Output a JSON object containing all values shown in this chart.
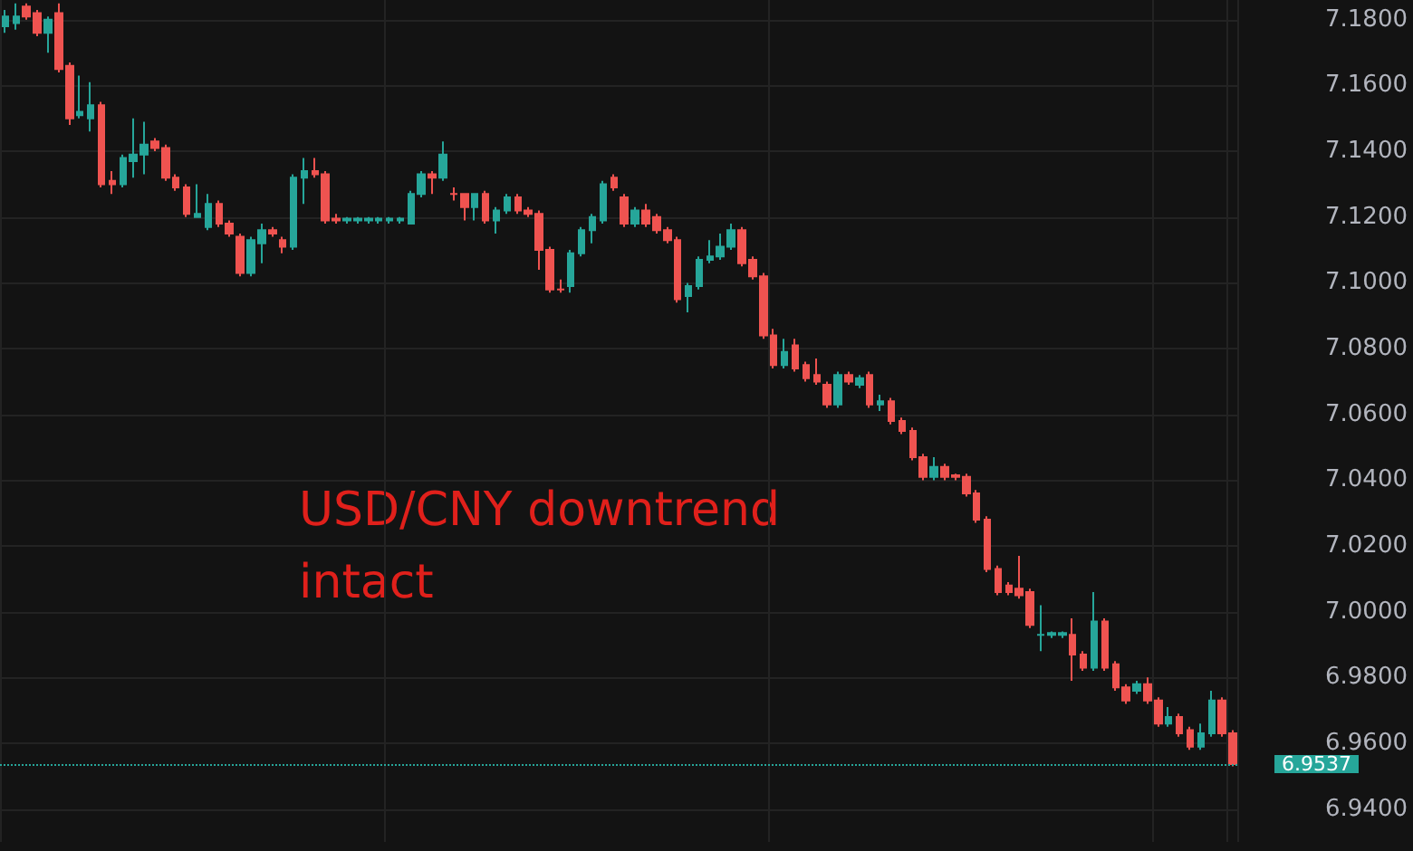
{
  "chart_data": {
    "type": "candlestick",
    "categories": [
      null,
      null,
      null,
      null,
      null,
      null,
      null,
      null,
      null,
      null,
      null,
      null,
      null,
      null,
      null,
      null,
      null,
      null,
      null,
      null,
      null,
      null,
      null,
      null,
      null,
      null,
      null,
      null,
      null,
      null,
      null,
      null,
      null,
      null,
      null,
      null,
      null,
      null,
      null,
      null,
      null,
      null,
      null,
      null,
      null,
      null,
      null,
      null,
      null,
      null,
      null,
      null,
      null,
      null,
      null,
      null,
      null,
      null,
      null,
      null,
      null,
      null,
      null,
      null,
      null,
      null,
      null,
      null,
      null,
      null,
      null,
      null,
      null,
      null,
      null,
      null,
      null,
      null,
      null,
      null,
      null,
      null,
      null,
      null,
      null,
      null,
      null,
      null,
      null,
      null,
      null,
      null,
      null,
      null,
      null,
      null,
      null,
      null,
      null,
      null,
      null,
      null,
      null,
      null,
      null,
      null,
      null,
      null,
      null,
      null,
      null,
      null,
      null,
      null,
      null,
      null
    ],
    "ohlc": [
      [
        7.178,
        7.183,
        7.176,
        7.181
      ],
      [
        7.179,
        7.185,
        7.177,
        7.181
      ],
      [
        7.184,
        7.185,
        7.18,
        7.181
      ],
      [
        7.182,
        7.183,
        7.175,
        7.176
      ],
      [
        7.176,
        7.181,
        7.17,
        7.18
      ],
      [
        7.182,
        7.185,
        7.164,
        7.165
      ],
      [
        7.166,
        7.167,
        7.148,
        7.15
      ],
      [
        7.151,
        7.163,
        7.15,
        7.152
      ],
      [
        7.15,
        7.161,
        7.146,
        7.154
      ],
      [
        7.154,
        7.155,
        7.129,
        7.13
      ],
      [
        7.131,
        7.134,
        7.127,
        7.13
      ],
      [
        7.13,
        7.139,
        7.129,
        7.138
      ],
      [
        7.137,
        7.15,
        7.132,
        7.139
      ],
      [
        7.139,
        7.149,
        7.133,
        7.142
      ],
      [
        7.143,
        7.144,
        7.14,
        7.141
      ],
      [
        7.141,
        7.142,
        7.131,
        7.132
      ],
      [
        7.132,
        7.133,
        7.128,
        7.129
      ],
      [
        7.129,
        7.13,
        7.12,
        7.121
      ],
      [
        7.12,
        7.13,
        7.12,
        7.121
      ],
      [
        7.117,
        7.127,
        7.116,
        7.124
      ],
      [
        7.124,
        7.125,
        7.117,
        7.118
      ],
      [
        7.118,
        7.119,
        7.114,
        7.115
      ],
      [
        7.114,
        7.115,
        7.102,
        7.103
      ],
      [
        7.103,
        7.114,
        7.102,
        7.113
      ],
      [
        7.112,
        7.118,
        7.106,
        7.116
      ],
      [
        7.116,
        7.117,
        7.114,
        7.115
      ],
      [
        7.113,
        7.114,
        7.109,
        7.111
      ],
      [
        7.111,
        7.133,
        7.11,
        7.132
      ],
      [
        7.132,
        7.138,
        7.124,
        7.134
      ],
      [
        7.134,
        7.138,
        7.132,
        7.133
      ],
      [
        7.133,
        7.134,
        7.118,
        7.119
      ],
      [
        7.1195,
        7.121,
        7.118,
        7.119
      ],
      [
        7.119,
        7.12,
        7.118,
        7.1195
      ],
      [
        7.119,
        7.12,
        7.118,
        7.1195
      ],
      [
        7.119,
        7.12,
        7.118,
        7.1195
      ],
      [
        7.119,
        7.12,
        7.118,
        7.1195
      ],
      [
        7.119,
        7.12,
        7.118,
        7.1195
      ],
      [
        7.119,
        7.12,
        7.118,
        7.1195
      ],
      [
        7.118,
        7.128,
        7.118,
        7.127
      ],
      [
        7.127,
        7.134,
        7.126,
        7.133
      ],
      [
        7.133,
        7.134,
        7.127,
        7.132
      ],
      [
        7.132,
        7.143,
        7.131,
        7.139
      ],
      [
        7.127,
        7.129,
        7.125,
        7.127
      ],
      [
        7.127,
        7.127,
        7.119,
        7.123
      ],
      [
        7.123,
        7.127,
        7.119,
        7.127
      ],
      [
        7.127,
        7.128,
        7.118,
        7.119
      ],
      [
        7.119,
        7.123,
        7.115,
        7.122
      ],
      [
        7.122,
        7.127,
        7.121,
        7.126
      ],
      [
        7.126,
        7.127,
        7.121,
        7.122
      ],
      [
        7.122,
        7.123,
        7.12,
        7.121
      ],
      [
        7.121,
        7.122,
        7.104,
        7.11
      ],
      [
        7.11,
        7.111,
        7.097,
        7.098
      ],
      [
        7.098,
        7.101,
        7.097,
        7.098
      ],
      [
        7.099,
        7.11,
        7.097,
        7.109
      ],
      [
        7.109,
        7.117,
        7.108,
        7.116
      ],
      [
        7.116,
        7.121,
        7.112,
        7.12
      ],
      [
        7.119,
        7.131,
        7.118,
        7.13
      ],
      [
        7.132,
        7.133,
        7.128,
        7.129
      ],
      [
        7.126,
        7.127,
        7.117,
        7.118
      ],
      [
        7.118,
        7.123,
        7.117,
        7.122
      ],
      [
        7.122,
        7.124,
        7.117,
        7.118
      ],
      [
        7.12,
        7.121,
        7.115,
        7.116
      ],
      [
        7.116,
        7.117,
        7.112,
        7.113
      ],
      [
        7.113,
        7.114,
        7.094,
        7.095
      ],
      [
        7.096,
        7.1,
        7.091,
        7.099
      ],
      [
        7.099,
        7.108,
        7.098,
        7.107
      ],
      [
        7.107,
        7.113,
        7.106,
        7.108
      ],
      [
        7.108,
        7.115,
        7.107,
        7.111
      ],
      [
        7.111,
        7.118,
        7.11,
        7.116
      ],
      [
        7.116,
        7.117,
        7.105,
        7.106
      ],
      [
        7.107,
        7.108,
        7.101,
        7.102
      ],
      [
        7.102,
        7.103,
        7.083,
        7.084
      ],
      [
        7.084,
        7.086,
        7.074,
        7.075
      ],
      [
        7.075,
        7.083,
        7.074,
        7.079
      ],
      [
        7.081,
        7.083,
        7.073,
        7.074
      ],
      [
        7.075,
        7.076,
        7.07,
        7.071
      ],
      [
        7.072,
        7.077,
        7.069,
        7.07
      ],
      [
        7.069,
        7.07,
        7.062,
        7.063
      ],
      [
        7.063,
        7.073,
        7.062,
        7.072
      ],
      [
        7.072,
        7.073,
        7.069,
        7.07
      ],
      [
        7.069,
        7.072,
        7.068,
        7.071
      ],
      [
        7.072,
        7.073,
        7.062,
        7.063
      ],
      [
        7.063,
        7.066,
        7.061,
        7.064
      ],
      [
        7.064,
        7.065,
        7.057,
        7.058
      ],
      [
        7.058,
        7.059,
        7.054,
        7.055
      ],
      [
        7.055,
        7.056,
        7.046,
        7.047
      ],
      [
        7.047,
        7.048,
        7.04,
        7.041
      ],
      [
        7.041,
        7.047,
        7.04,
        7.044
      ],
      [
        7.044,
        7.045,
        7.04,
        7.041
      ],
      [
        7.0415,
        7.042,
        7.04,
        7.041
      ],
      [
        7.041,
        7.042,
        7.035,
        7.036
      ],
      [
        7.036,
        7.037,
        7.027,
        7.028
      ],
      [
        7.028,
        7.029,
        7.012,
        7.013
      ],
      [
        7.013,
        7.014,
        7.005,
        7.006
      ],
      [
        7.008,
        7.009,
        7.005,
        7.006
      ],
      [
        7.007,
        7.017,
        7.004,
        7.005
      ],
      [
        7.006,
        7.007,
        6.995,
        6.996
      ],
      [
        6.993,
        7.002,
        6.988,
        6.993
      ],
      [
        6.993,
        6.994,
        6.992,
        6.9935
      ],
      [
        6.993,
        6.994,
        6.992,
        6.9935
      ],
      [
        6.993,
        6.998,
        6.979,
        6.987
      ],
      [
        6.987,
        6.988,
        6.982,
        6.983
      ],
      [
        6.983,
        7.006,
        6.982,
        6.997
      ],
      [
        6.997,
        6.998,
        6.982,
        6.983
      ],
      [
        6.984,
        6.985,
        6.976,
        6.977
      ],
      [
        6.977,
        6.978,
        6.972,
        6.973
      ],
      [
        6.976,
        6.979,
        6.975,
        6.978
      ],
      [
        6.978,
        6.98,
        6.972,
        6.973
      ],
      [
        6.973,
        6.974,
        6.965,
        6.966
      ],
      [
        6.966,
        6.971,
        6.965,
        6.968
      ],
      [
        6.968,
        6.969,
        6.962,
        6.963
      ],
      [
        6.964,
        6.965,
        6.958,
        6.959
      ],
      [
        6.959,
        6.966,
        6.958,
        6.963
      ],
      [
        6.963,
        6.976,
        6.962,
        6.973
      ],
      [
        6.973,
        6.974,
        6.962,
        6.963
      ],
      [
        6.963,
        6.964,
        6.953,
        6.9537
      ]
    ],
    "colors": [
      "#26a69a",
      "#26a69a",
      "#ef5350",
      "#ef5350",
      "#26a69a",
      "#ef5350",
      "#ef5350",
      "#26a69a",
      "#26a69a",
      "#ef5350",
      "#ef5350",
      "#26a69a",
      "#26a69a",
      "#26a69a",
      "#ef5350",
      "#ef5350",
      "#ef5350",
      "#ef5350",
      "#26a69a",
      "#26a69a",
      "#ef5350",
      "#ef5350",
      "#ef5350",
      "#26a69a",
      "#26a69a",
      "#ef5350",
      "#ef5350",
      "#26a69a",
      "#26a69a",
      "#ef5350",
      "#ef5350",
      "#ef5350",
      "#26a69a",
      "#26a69a",
      "#26a69a",
      "#26a69a",
      "#26a69a",
      "#26a69a",
      "#26a69a",
      "#26a69a",
      "#ef5350",
      "#26a69a",
      "#ef5350",
      "#ef5350",
      "#26a69a",
      "#ef5350",
      "#26a69a",
      "#26a69a",
      "#ef5350",
      "#ef5350",
      "#ef5350",
      "#ef5350",
      "#ef5350",
      "#26a69a",
      "#26a69a",
      "#26a69a",
      "#26a69a",
      "#ef5350",
      "#ef5350",
      "#26a69a",
      "#ef5350",
      "#ef5350",
      "#ef5350",
      "#ef5350",
      "#26a69a",
      "#26a69a",
      "#26a69a",
      "#26a69a",
      "#26a69a",
      "#ef5350",
      "#ef5350",
      "#ef5350",
      "#ef5350",
      "#26a69a",
      "#ef5350",
      "#ef5350",
      "#ef5350",
      "#ef5350",
      "#26a69a",
      "#ef5350",
      "#26a69a",
      "#ef5350",
      "#26a69a",
      "#ef5350",
      "#ef5350",
      "#ef5350",
      "#ef5350",
      "#26a69a",
      "#ef5350",
      "#ef5350",
      "#ef5350",
      "#ef5350",
      "#ef5350",
      "#ef5350",
      "#ef5350",
      "#ef5350",
      "#ef5350",
      "#26a69a",
      "#26a69a",
      "#26a69a",
      "#ef5350",
      "#ef5350",
      "#26a69a",
      "#ef5350",
      "#ef5350",
      "#ef5350",
      "#26a69a",
      "#ef5350",
      "#ef5350",
      "#26a69a",
      "#ef5350",
      "#ef5350",
      "#26a69a",
      "#26a69a",
      "#ef5350",
      "#ef5350"
    ],
    "ylim": [
      6.93,
      7.186
    ],
    "yticks": [
      {
        "value": 6.94,
        "label": "6.9400"
      },
      {
        "value": 6.96,
        "label": "6.9600"
      },
      {
        "value": 6.98,
        "label": "6.9800"
      },
      {
        "value": 7.0,
        "label": "7.0000"
      },
      {
        "value": 7.02,
        "label": "7.0200"
      },
      {
        "value": 7.04,
        "label": "7.0400"
      },
      {
        "value": 7.06,
        "label": "7.0600"
      },
      {
        "value": 7.08,
        "label": "7.0800"
      },
      {
        "value": 7.1,
        "label": "7.1000"
      },
      {
        "value": 7.12,
        "label": "7.1200"
      },
      {
        "value": 7.14,
        "label": "7.1400"
      },
      {
        "value": 7.16,
        "label": "7.1600"
      },
      {
        "value": 7.18,
        "label": "7.1800"
      }
    ],
    "tick_labels": "y",
    "grid": true,
    "ref_lines": [
      {
        "axis": "y",
        "value": 6.9537,
        "label": "6.9537",
        "color": "#26a69a",
        "line_style": "dotted"
      }
    ],
    "annotations": [
      "USD/CNY downtrend intact"
    ]
  }
}
